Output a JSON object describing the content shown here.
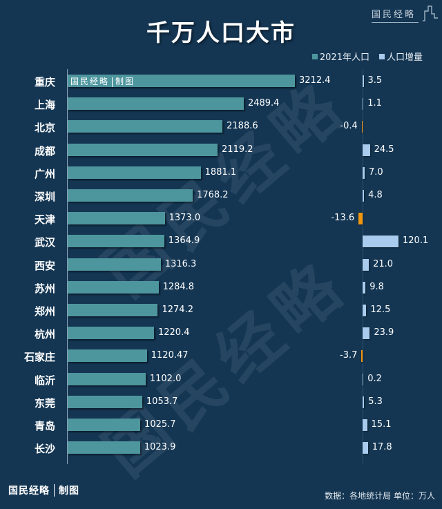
{
  "header": {
    "title": "千万人口大市",
    "logo_text": "国民经略"
  },
  "legend": {
    "items": [
      {
        "label": "2021年人口",
        "color": "#4e969e"
      },
      {
        "label": "人口增量",
        "color": "#a9cbee"
      }
    ]
  },
  "colors": {
    "background": "#143653",
    "population_bar": "#4e969e",
    "increase_positive": "#a9cbee",
    "increase_negative": "#f0960f"
  },
  "bar_watermark": {
    "brand": "国民经略",
    "suffix": "制图"
  },
  "watermark_text": "国民经略",
  "footer": {
    "brand": "国民经略",
    "suffix": "制图",
    "source": "数据：各地统计局 单位：万人"
  },
  "chart_data": {
    "type": "bar",
    "orientation": "horizontal",
    "title": "千万人口大市",
    "xlabel": "",
    "ylabel": "",
    "unit": "万人",
    "source": "各地统计局",
    "legend_position": "top-right",
    "grid": false,
    "categories": [
      "重庆",
      "上海",
      "北京",
      "成都",
      "广州",
      "深圳",
      "天津",
      "武汉",
      "西安",
      "苏州",
      "郑州",
      "杭州",
      "石家庄",
      "临沂",
      "东莞",
      "青岛",
      "长沙"
    ],
    "series": [
      {
        "name": "2021年人口",
        "values": [
          3212.4,
          2489.4,
          2188.6,
          2119.2,
          1881.1,
          1768.2,
          1373.0,
          1364.9,
          1316.3,
          1284.8,
          1274.2,
          1220.4,
          1120.47,
          1102.0,
          1053.7,
          1025.7,
          1023.9
        ],
        "labels": [
          "3212.4",
          "2489.4",
          "2188.6",
          "2119.2",
          "1881.1",
          "1768.2",
          "1373.0",
          "1364.9",
          "1316.3",
          "1284.8",
          "1274.2",
          "1220.4",
          "1120.47",
          "1102.0",
          "1053.7",
          "1025.7",
          "1023.9"
        ]
      },
      {
        "name": "人口增量",
        "values": [
          3.5,
          1.1,
          -0.4,
          24.5,
          7.0,
          4.8,
          -13.6,
          120.1,
          21.0,
          9.8,
          12.5,
          23.9,
          -3.7,
          0.2,
          5.3,
          15.1,
          17.8
        ],
        "labels": [
          "3.5",
          "1.1",
          "-0.4",
          "24.5",
          "7.0",
          "4.8",
          "-13.6",
          "120.1",
          "21.0",
          "9.8",
          "12.5",
          "23.9",
          "-3.7",
          "0.2",
          "5.3",
          "15.1",
          "17.8"
        ]
      }
    ]
  }
}
